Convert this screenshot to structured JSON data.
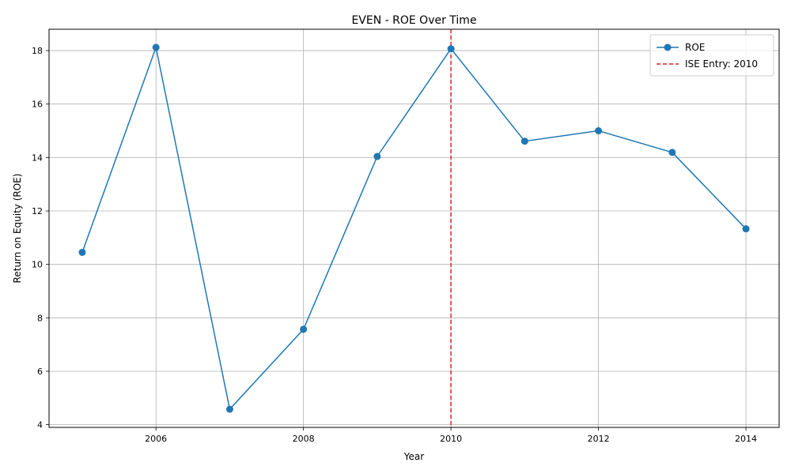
{
  "chart_data": {
    "type": "line",
    "title": "EVEN - ROE Over Time",
    "xlabel": "Year",
    "ylabel": "Return on Equity (ROE)",
    "xlim": [
      2004.55,
      2014.45
    ],
    "ylim": [
      3.9,
      18.8
    ],
    "xticks": [
      2006,
      2008,
      2010,
      2012,
      2014
    ],
    "yticks": [
      4,
      6,
      8,
      10,
      12,
      14,
      16,
      18
    ],
    "grid": true,
    "legend_position": "top-right",
    "colors": {
      "series": "#1f77b4",
      "reference": "#d62728"
    },
    "series": [
      {
        "name": "ROE",
        "x": [
          2005,
          2006,
          2007,
          2008,
          2009,
          2010,
          2011,
          2012,
          2013,
          2014
        ],
        "values": [
          10.45,
          18.12,
          4.58,
          7.57,
          14.04,
          18.07,
          14.61,
          15.0,
          14.19,
          11.33
        ]
      }
    ],
    "reference_line": {
      "x": 2010,
      "label": "ISE Entry: 2010"
    }
  }
}
